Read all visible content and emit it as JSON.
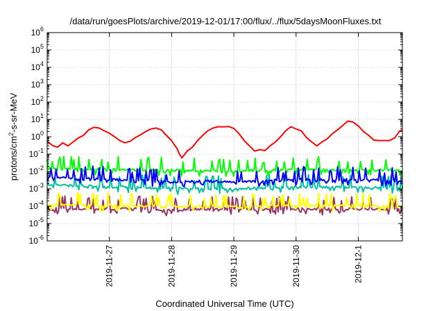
{
  "chart_data": {
    "type": "line",
    "title": "/data/run/goesPlots/archive/2019-12-01/17:00/flux/../flux/5daysMoonFluxes.txt",
    "xlabel": "Coordinated Universal Time (UTC)",
    "ylabel_parts": [
      "protons/cm",
      "2",
      "-s-sr-MeV"
    ],
    "y_scale": "log",
    "ylim": [
      1e-06,
      1000000.0
    ],
    "y_ticks": [
      {
        "value": 1e-06,
        "base": "10",
        "exp": "-6"
      },
      {
        "value": 1e-05,
        "base": "10",
        "exp": "-5"
      },
      {
        "value": 0.0001,
        "base": "10",
        "exp": "-4"
      },
      {
        "value": 0.001,
        "base": "10",
        "exp": "-3"
      },
      {
        "value": 0.01,
        "base": "10",
        "exp": "-2"
      },
      {
        "value": 0.1,
        "base": "10",
        "exp": "-1"
      },
      {
        "value": 1,
        "base": "10",
        "exp": "0"
      },
      {
        "value": 10,
        "base": "10",
        "exp": "1"
      },
      {
        "value": 100,
        "base": "10",
        "exp": "2"
      },
      {
        "value": 1000,
        "base": "10",
        "exp": "3"
      },
      {
        "value": 10000,
        "base": "10",
        "exp": "4"
      },
      {
        "value": 100000,
        "base": "10",
        "exp": "5"
      },
      {
        "value": 1000000,
        "base": "10",
        "exp": "6"
      }
    ],
    "xlim": [
      "2019-11-26T00:00",
      "2019-12-01T17:00"
    ],
    "x_ticks": [
      {
        "value": "2019-11-27T00:00",
        "label": "2019-11-27"
      },
      {
        "value": "2019-11-28T00:00",
        "label": "2019-11-28"
      },
      {
        "value": "2019-11-29T00:00",
        "label": "2019-11-29"
      },
      {
        "value": "2019-11-30T00:00",
        "label": "2019-11-30"
      },
      {
        "value": "2019-12-01T00:00",
        "label": "2019-12-1"
      }
    ],
    "grid": true,
    "series": [
      {
        "color": "#ff0000",
        "x": [
          "2019-11-26T00:00",
          "2019-11-26T02:00",
          "2019-11-26T04:00",
          "2019-11-26T06:00",
          "2019-11-26T08:00",
          "2019-11-26T10:00",
          "2019-11-26T12:00",
          "2019-11-26T14:00",
          "2019-11-26T16:00",
          "2019-11-26T18:00",
          "2019-11-26T20:00",
          "2019-11-26T22:00",
          "2019-11-27T00:00",
          "2019-11-27T02:00",
          "2019-11-27T04:00",
          "2019-11-27T06:00",
          "2019-11-27T08:00",
          "2019-11-27T10:00",
          "2019-11-27T12:00",
          "2019-11-27T14:00",
          "2019-11-27T16:00",
          "2019-11-27T18:00",
          "2019-11-27T20:00",
          "2019-11-27T22:00",
          "2019-11-28T00:00",
          "2019-11-28T01:00",
          "2019-11-28T02:00",
          "2019-11-28T03:00",
          "2019-11-28T04:00",
          "2019-11-28T06:00",
          "2019-11-28T08:00",
          "2019-11-28T10:00",
          "2019-11-28T12:00",
          "2019-11-28T14:00",
          "2019-11-28T16:00",
          "2019-11-28T18:00",
          "2019-11-28T20:00",
          "2019-11-28T22:00",
          "2019-11-29T00:00",
          "2019-11-29T02:00",
          "2019-11-29T04:00",
          "2019-11-29T06:00",
          "2019-11-29T08:00",
          "2019-11-29T10:00",
          "2019-11-29T12:00",
          "2019-11-29T14:00",
          "2019-11-29T16:00",
          "2019-11-29T18:00",
          "2019-11-29T20:00",
          "2019-11-29T22:00",
          "2019-11-30T00:00",
          "2019-11-30T02:00",
          "2019-11-30T04:00",
          "2019-11-30T06:00",
          "2019-11-30T08:00",
          "2019-11-30T10:00",
          "2019-11-30T12:00",
          "2019-11-30T14:00",
          "2019-11-30T16:00",
          "2019-11-30T18:00",
          "2019-11-30T20:00",
          "2019-11-30T22:00",
          "2019-12-01T00:00",
          "2019-12-01T02:00",
          "2019-12-01T04:00",
          "2019-12-01T06:00",
          "2019-12-01T08:00",
          "2019-12-01T10:00",
          "2019-12-01T12:00",
          "2019-12-01T14:00",
          "2019-12-01T16:00",
          "2019-12-01T17:00"
        ],
        "values": [
          0.55,
          0.32,
          0.25,
          0.45,
          0.3,
          0.5,
          0.85,
          1.2,
          2.5,
          3.5,
          3.2,
          2.2,
          1.6,
          1.0,
          0.6,
          0.45,
          0.55,
          0.9,
          1.3,
          2.0,
          2.8,
          3.2,
          2.5,
          1.2,
          0.6,
          0.35,
          0.22,
          0.1,
          0.06,
          0.15,
          0.25,
          0.6,
          1.2,
          2.2,
          3.2,
          3.8,
          3.7,
          3.9,
          3.0,
          1.5,
          0.6,
          0.3,
          0.15,
          0.18,
          0.16,
          0.3,
          0.5,
          1.0,
          2.2,
          3.8,
          2.8,
          2.2,
          0.9,
          0.5,
          0.3,
          0.5,
          0.75,
          1.5,
          2.5,
          4.5,
          8.0,
          7.0,
          4.2,
          2.0,
          1.2,
          0.65,
          0.6,
          0.6,
          0.6,
          0.85,
          2.2,
          2.5
        ]
      },
      {
        "color": "#00ff00",
        "noise": true,
        "x": [
          "2019-11-26T00:00",
          "2019-11-26T12:00",
          "2019-11-27T00:00",
          "2019-11-27T12:00",
          "2019-11-28T00:00",
          "2019-11-28T12:00",
          "2019-11-29T00:00",
          "2019-11-29T12:00",
          "2019-11-30T00:00",
          "2019-11-30T12:00",
          "2019-12-01T00:00",
          "2019-12-01T12:00",
          "2019-12-01T17:00"
        ],
        "values": [
          0.015,
          0.014,
          0.013,
          0.013,
          0.012,
          0.011,
          0.011,
          0.012,
          0.013,
          0.013,
          0.012,
          0.012,
          0.012
        ]
      },
      {
        "color": "#0000ff",
        "noise": true,
        "x": [
          "2019-11-26T00:00",
          "2019-11-26T12:00",
          "2019-11-27T00:00",
          "2019-11-27T12:00",
          "2019-11-28T00:00",
          "2019-11-28T12:00",
          "2019-11-29T00:00",
          "2019-11-29T12:00",
          "2019-11-30T00:00",
          "2019-11-30T12:00",
          "2019-12-01T00:00",
          "2019-12-01T12:00",
          "2019-12-01T17:00"
        ],
        "values": [
          0.0045,
          0.004,
          0.0035,
          0.003,
          0.0025,
          0.0028,
          0.0025,
          0.003,
          0.0035,
          0.0035,
          0.0035,
          0.003,
          0.003
        ]
      },
      {
        "color": "#00c0a0",
        "noise": true,
        "x": [
          "2019-11-26T00:00",
          "2019-11-26T12:00",
          "2019-11-27T00:00",
          "2019-11-27T12:00",
          "2019-11-28T00:00",
          "2019-11-28T12:00",
          "2019-11-29T00:00",
          "2019-11-29T12:00",
          "2019-11-30T00:00",
          "2019-11-30T12:00",
          "2019-12-01T00:00",
          "2019-12-01T12:00",
          "2019-12-01T17:00"
        ],
        "values": [
          0.0017,
          0.0015,
          0.0013,
          0.0012,
          0.0011,
          0.001,
          0.001,
          0.0012,
          0.0013,
          0.0013,
          0.0012,
          0.0011,
          0.0011
        ]
      },
      {
        "color": "#ffff00",
        "noise": true,
        "x": [
          "2019-11-26T00:00",
          "2019-11-26T12:00",
          "2019-11-27T00:00",
          "2019-11-27T12:00",
          "2019-11-28T00:00",
          "2019-11-28T12:00",
          "2019-11-29T00:00",
          "2019-11-29T12:00",
          "2019-11-30T00:00",
          "2019-11-30T12:00",
          "2019-12-01T00:00",
          "2019-12-01T12:00",
          "2019-12-01T17:00"
        ],
        "values": [
          0.00013,
          0.00012,
          0.00011,
          0.00011,
          0.0001,
          0.0001,
          0.0001,
          0.0001,
          0.00011,
          0.00011,
          0.00011,
          0.0001,
          0.0001
        ]
      },
      {
        "color": "#993366",
        "noise": true,
        "x": [
          "2019-11-26T00:00",
          "2019-11-26T12:00",
          "2019-11-27T00:00",
          "2019-11-27T12:00",
          "2019-11-28T00:00",
          "2019-11-28T12:00",
          "2019-11-29T00:00",
          "2019-11-29T12:00",
          "2019-11-30T00:00",
          "2019-11-30T12:00",
          "2019-12-01T00:00",
          "2019-12-01T12:00",
          "2019-12-01T17:00"
        ],
        "values": [
          8e-05,
          7e-05,
          7e-05,
          7e-05,
          6e-05,
          7e-05,
          7e-05,
          7e-05,
          7e-05,
          7e-05,
          7e-05,
          7e-05,
          7e-05
        ]
      }
    ]
  }
}
